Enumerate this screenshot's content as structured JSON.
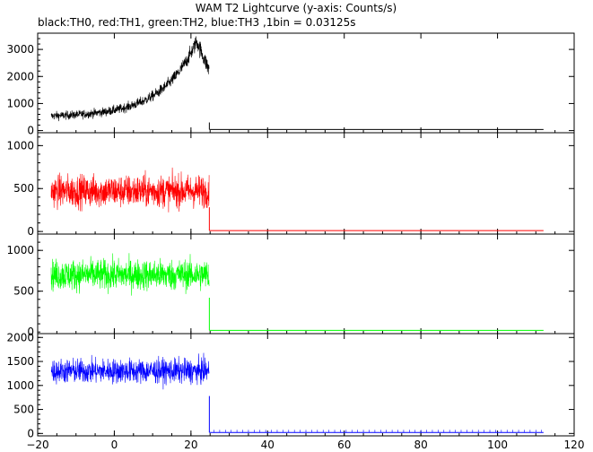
{
  "title": "WAM T2 Lightcurve (y-axis: Counts/s)",
  "subtitle": "black:TH0, red:TH1, green:TH2, blue:TH3 ,1bin = 0.03125s",
  "chart_data": {
    "type": "line",
    "title": "WAM T2 Lightcurve (y-axis: Counts/s)",
    "subtitle": "black:TH0, red:TH1, green:TH2, blue:TH3 ,1bin = 0.03125s",
    "xlim": [
      -20,
      120
    ],
    "x_ticks": [
      -20,
      0,
      20,
      40,
      60,
      80,
      100,
      120
    ],
    "x_tick_labels": [
      "−20",
      "0",
      "20",
      "40",
      "60",
      "80",
      "100",
      "120"
    ],
    "bin_width_s": 0.03125,
    "grid": false,
    "panels": [
      {
        "color": "#000000",
        "ylim": [
          -80,
          3600
        ],
        "y_ticks": [
          0,
          1000,
          2000,
          3000
        ],
        "y_tick_labels": [
          "0",
          "1000",
          "2000",
          "3000"
        ],
        "active_x": [
          -16.5,
          24.8
        ],
        "shape": "rising",
        "base": 500,
        "peak": 3300,
        "peak_x": 21.5,
        "noise": 230,
        "tail_value": 40
      },
      {
        "color": "#ff0000",
        "ylim": [
          -30,
          1150
        ],
        "y_ticks": [
          0,
          500,
          1000
        ],
        "y_tick_labels": [
          "0",
          "500",
          "1000"
        ],
        "active_x": [
          -16.5,
          24.8
        ],
        "shape": "flat",
        "base": 470,
        "noise": 170,
        "tail_value": 10
      },
      {
        "color": "#00ff00",
        "ylim": [
          -20,
          1200
        ],
        "y_ticks": [
          500,
          1000
        ],
        "y_tick_labels": [
          "500",
          "1000"
        ],
        "clipped_tick_label": "0",
        "active_x": [
          -16.5,
          24.8
        ],
        "shape": "flat",
        "base": 700,
        "noise": 170,
        "tail_value": 20
      },
      {
        "color": "#0000ff",
        "ylim": [
          -50,
          2080
        ],
        "y_ticks": [
          0,
          500,
          1000,
          1500,
          2000
        ],
        "y_tick_labels": [
          "0",
          "500",
          "1000",
          "1500",
          "2000"
        ],
        "active_x": [
          -16.5,
          24.8
        ],
        "shape": "flat",
        "base": 1300,
        "noise": 230,
        "tail_value": 20
      }
    ]
  }
}
